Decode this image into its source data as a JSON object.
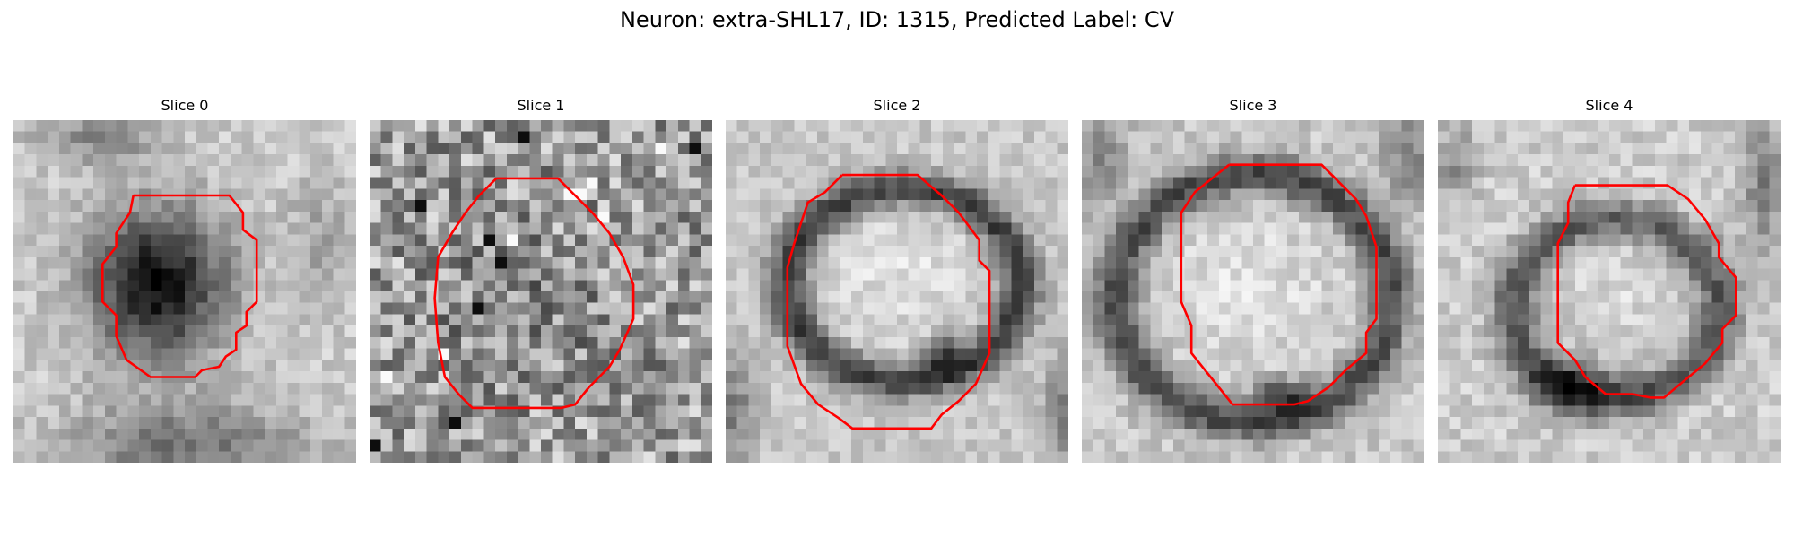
{
  "figure": {
    "title": "Neuron: extra-SHL17, ID: 1315, Predicted Label: CV"
  },
  "panels": [
    {
      "title": "Slice 0"
    },
    {
      "title": "Slice 1"
    },
    {
      "title": "Slice 2"
    },
    {
      "title": "Slice 3"
    },
    {
      "title": "Slice 4"
    }
  ],
  "colors": {
    "contour": "#ff0000",
    "background": "#ffffff"
  }
}
